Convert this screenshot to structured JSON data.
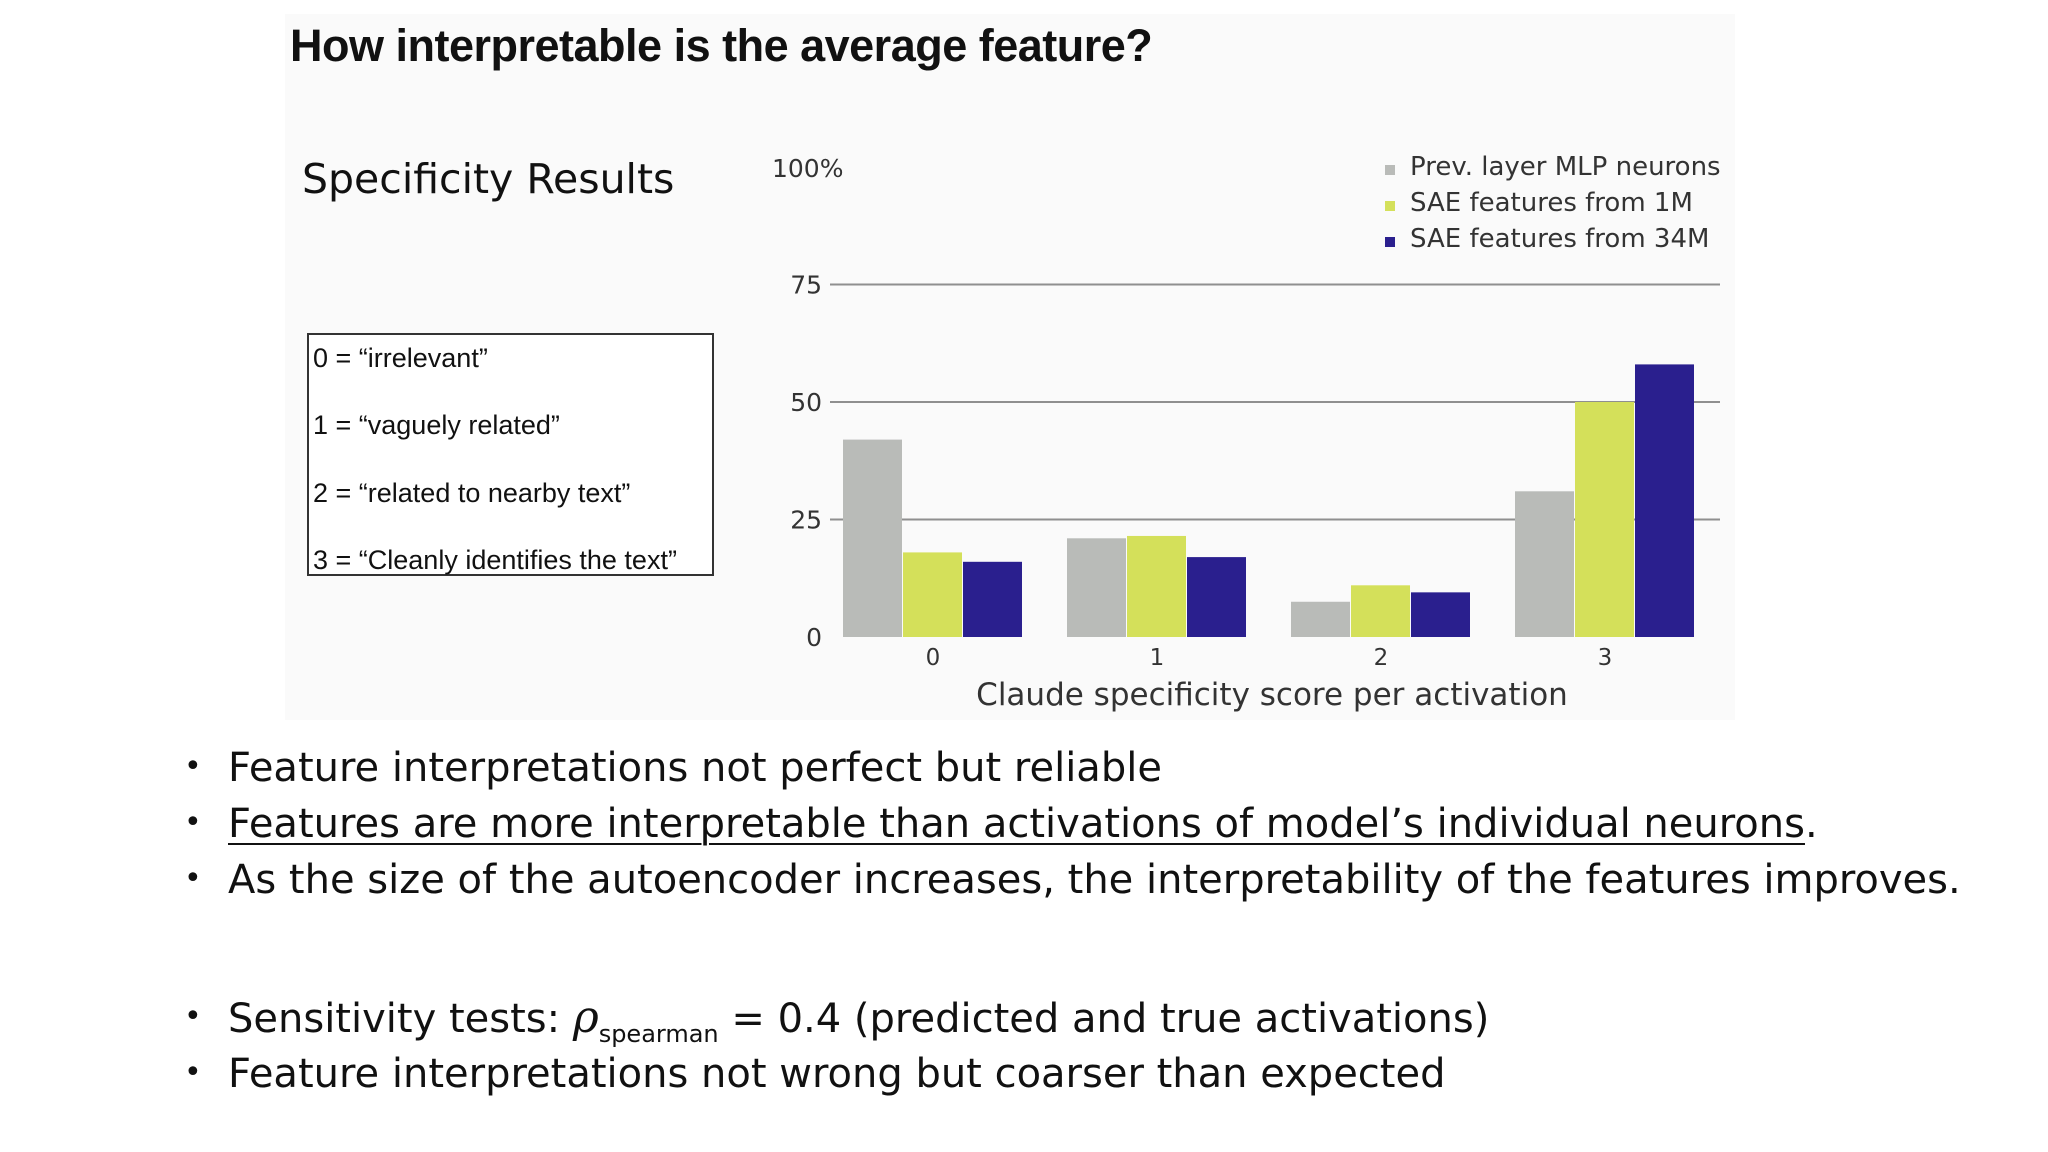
{
  "heading": "How interpretable is the average feature?",
  "spec_title": "Specificity Results",
  "score_legend": [
    "0 = “irrelevant”",
    "1 = “vaguely related”",
    "2 = “related to nearby text”",
    "3 = “Cleanly identifies the text”"
  ],
  "bullets": [
    {
      "text": "Feature interpretations not perfect but reliable",
      "underlined": "",
      "trail": ""
    },
    {
      "text": "",
      "underlined": "Features are more interpretable than activations of model’s individual neurons",
      "trail": "."
    },
    {
      "text": "As the size of the autoencoder increases, the interpretability of the features improves.",
      "underlined": "",
      "trail": ""
    }
  ],
  "bullets2": {
    "sensitivity_prefix": "Sensitivity tests: ",
    "rho_symbol": "ρ",
    "rho_sub": "spearman",
    "sensitivity_suffix": " = 0.4 (predicted and true activations)",
    "coarser": "Feature interpretations not wrong but coarser than expected"
  },
  "chart_data": {
    "type": "bar",
    "categories": [
      "0",
      "1",
      "2",
      "3"
    ],
    "series": [
      {
        "name": "Prev. layer MLP neurons",
        "color": "#b9bbb8",
        "values": [
          42,
          21,
          7.5,
          31
        ]
      },
      {
        "name": "SAE features from 1M",
        "color": "#d4e05a",
        "values": [
          18,
          21.5,
          11,
          50
        ]
      },
      {
        "name": "SAE features from 34M",
        "color": "#2a1f8e",
        "values": [
          16,
          17,
          9.5,
          58
        ]
      }
    ],
    "xlabel": "Claude specificity score per activation",
    "ylabel": "",
    "ylim": [
      0,
      100
    ],
    "y_ticks": [
      {
        "value": 0,
        "label": "0"
      },
      {
        "value": 25,
        "label": "25"
      },
      {
        "value": 50,
        "label": "50"
      },
      {
        "value": 75,
        "label": "75"
      },
      {
        "value": 100,
        "label": "100%"
      }
    ],
    "grid": true,
    "legend_position": "top-right"
  }
}
